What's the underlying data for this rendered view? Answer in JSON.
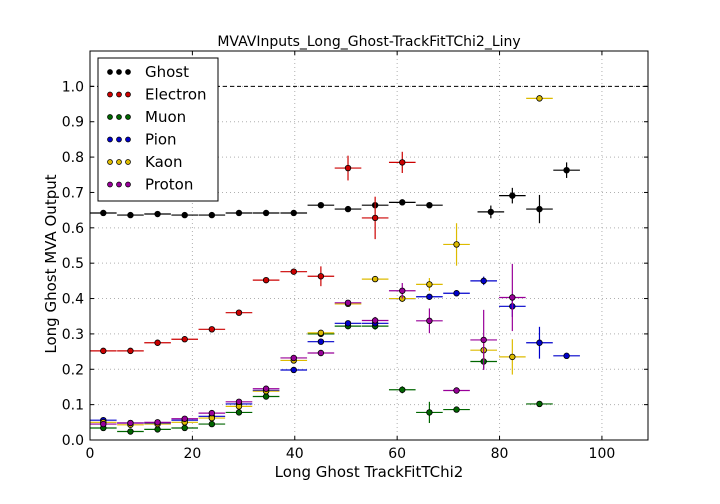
{
  "chart_data": {
    "type": "scatter",
    "title": "MVAVInputs_Long_Ghost-TrackFitTChi2_Liny",
    "xlabel": "Long Ghost TrackFitTChi2",
    "ylabel": "Long Ghost MVA Output",
    "xlim": [
      0,
      109
    ],
    "ylim": [
      0,
      1.1
    ],
    "xticks": [
      0,
      20,
      40,
      60,
      80,
      100
    ],
    "yticks": [
      0.0,
      0.1,
      0.2,
      0.3,
      0.4,
      0.5,
      0.6,
      0.7,
      0.8,
      0.9,
      1.0
    ],
    "grid": true,
    "reference_line_y": 1.0,
    "legend_position": "top-left",
    "series": [
      {
        "name": "Ghost",
        "color": "#000000",
        "points": [
          {
            "x": 2.6,
            "y": 0.642,
            "xerr": 2.6,
            "yerr": 0.004
          },
          {
            "x": 7.9,
            "y": 0.636,
            "xerr": 2.6,
            "yerr": 0.004
          },
          {
            "x": 13.2,
            "y": 0.639,
            "xerr": 2.6,
            "yerr": 0.004
          },
          {
            "x": 18.5,
            "y": 0.636,
            "xerr": 2.6,
            "yerr": 0.004
          },
          {
            "x": 23.8,
            "y": 0.636,
            "xerr": 2.6,
            "yerr": 0.004
          },
          {
            "x": 29.1,
            "y": 0.642,
            "xerr": 2.6,
            "yerr": 0.004
          },
          {
            "x": 34.4,
            "y": 0.642,
            "xerr": 2.6,
            "yerr": 0.004
          },
          {
            "x": 39.8,
            "y": 0.642,
            "xerr": 2.6,
            "yerr": 0.004
          },
          {
            "x": 45.1,
            "y": 0.664,
            "xerr": 2.6,
            "yerr": 0.006
          },
          {
            "x": 50.4,
            "y": 0.653,
            "xerr": 2.6,
            "yerr": 0.006
          },
          {
            "x": 55.7,
            "y": 0.664,
            "xerr": 2.6,
            "yerr": 0.007
          },
          {
            "x": 61.0,
            "y": 0.672,
            "xerr": 2.6,
            "yerr": 0.008
          },
          {
            "x": 66.3,
            "y": 0.664,
            "xerr": 2.6,
            "yerr": 0.008
          },
          {
            "x": 78.3,
            "y": 0.645,
            "xerr": 2.6,
            "yerr": 0.018
          },
          {
            "x": 82.5,
            "y": 0.691,
            "xerr": 2.6,
            "yerr": 0.022
          },
          {
            "x": 87.8,
            "y": 0.653,
            "xerr": 2.6,
            "yerr": 0.04
          },
          {
            "x": 93.1,
            "y": 0.763,
            "xerr": 2.6,
            "yerr": 0.022
          }
        ]
      },
      {
        "name": "Electron",
        "color": "#cc0000",
        "points": [
          {
            "x": 2.6,
            "y": 0.252,
            "xerr": 2.6,
            "yerr": 0.003
          },
          {
            "x": 7.9,
            "y": 0.252,
            "xerr": 2.6,
            "yerr": 0.003
          },
          {
            "x": 13.2,
            "y": 0.275,
            "xerr": 2.6,
            "yerr": 0.003
          },
          {
            "x": 18.5,
            "y": 0.285,
            "xerr": 2.6,
            "yerr": 0.003
          },
          {
            "x": 23.8,
            "y": 0.313,
            "xerr": 2.6,
            "yerr": 0.003
          },
          {
            "x": 29.1,
            "y": 0.36,
            "xerr": 2.6,
            "yerr": 0.004
          },
          {
            "x": 34.4,
            "y": 0.452,
            "xerr": 2.6,
            "yerr": 0.004
          },
          {
            "x": 39.8,
            "y": 0.476,
            "xerr": 2.6,
            "yerr": 0.006
          },
          {
            "x": 45.1,
            "y": 0.463,
            "xerr": 2.6,
            "yerr": 0.028
          },
          {
            "x": 50.4,
            "y": 0.769,
            "xerr": 2.6,
            "yerr": 0.035
          },
          {
            "x": 55.7,
            "y": 0.628,
            "xerr": 2.6,
            "yerr": 0.06
          },
          {
            "x": 61.0,
            "y": 0.785,
            "xerr": 2.6,
            "yerr": 0.03
          }
        ]
      },
      {
        "name": "Muon",
        "color": "#006600",
        "points": [
          {
            "x": 2.6,
            "y": 0.034,
            "xerr": 2.6,
            "yerr": 0.002
          },
          {
            "x": 7.9,
            "y": 0.024,
            "xerr": 2.6,
            "yerr": 0.002
          },
          {
            "x": 13.2,
            "y": 0.03,
            "xerr": 2.6,
            "yerr": 0.002
          },
          {
            "x": 18.5,
            "y": 0.034,
            "xerr": 2.6,
            "yerr": 0.002
          },
          {
            "x": 23.8,
            "y": 0.045,
            "xerr": 2.6,
            "yerr": 0.003
          },
          {
            "x": 29.1,
            "y": 0.078,
            "xerr": 2.6,
            "yerr": 0.004
          },
          {
            "x": 34.4,
            "y": 0.123,
            "xerr": 2.6,
            "yerr": 0.005
          },
          {
            "x": 45.1,
            "y": 0.3,
            "xerr": 2.6,
            "yerr": 0.006
          },
          {
            "x": 50.4,
            "y": 0.322,
            "xerr": 2.6,
            "yerr": 0.008
          },
          {
            "x": 55.7,
            "y": 0.322,
            "xerr": 2.6,
            "yerr": 0.01
          },
          {
            "x": 61.0,
            "y": 0.142,
            "xerr": 2.6,
            "yerr": 0.01
          },
          {
            "x": 66.3,
            "y": 0.078,
            "xerr": 2.6,
            "yerr": 0.03
          },
          {
            "x": 71.6,
            "y": 0.086,
            "xerr": 2.6,
            "yerr": 0.008
          },
          {
            "x": 76.9,
            "y": 0.222,
            "xerr": 2.6,
            "yerr": 0.02
          },
          {
            "x": 87.8,
            "y": 0.102,
            "xerr": 2.6,
            "yerr": 0.004
          }
        ]
      },
      {
        "name": "Pion",
        "color": "#0000cc",
        "points": [
          {
            "x": 2.6,
            "y": 0.056,
            "xerr": 2.6,
            "yerr": 0.002
          },
          {
            "x": 7.9,
            "y": 0.048,
            "xerr": 2.6,
            "yerr": 0.002
          },
          {
            "x": 13.2,
            "y": 0.048,
            "xerr": 2.6,
            "yerr": 0.002
          },
          {
            "x": 18.5,
            "y": 0.056,
            "xerr": 2.6,
            "yerr": 0.002
          },
          {
            "x": 23.8,
            "y": 0.067,
            "xerr": 2.6,
            "yerr": 0.003
          },
          {
            "x": 29.1,
            "y": 0.102,
            "xerr": 2.6,
            "yerr": 0.004
          },
          {
            "x": 34.4,
            "y": 0.14,
            "xerr": 2.6,
            "yerr": 0.004
          },
          {
            "x": 39.8,
            "y": 0.198,
            "xerr": 2.6,
            "yerr": 0.004
          },
          {
            "x": 45.1,
            "y": 0.278,
            "xerr": 2.6,
            "yerr": 0.005
          },
          {
            "x": 50.4,
            "y": 0.33,
            "xerr": 2.6,
            "yerr": 0.006
          },
          {
            "x": 55.7,
            "y": 0.33,
            "xerr": 2.6,
            "yerr": 0.007
          },
          {
            "x": 61.0,
            "y": 0.4,
            "xerr": 2.6,
            "yerr": 0.008
          },
          {
            "x": 66.3,
            "y": 0.405,
            "xerr": 2.6,
            "yerr": 0.008
          },
          {
            "x": 71.6,
            "y": 0.415,
            "xerr": 2.6,
            "yerr": 0.008
          },
          {
            "x": 76.9,
            "y": 0.45,
            "xerr": 2.6,
            "yerr": 0.012
          },
          {
            "x": 82.5,
            "y": 0.378,
            "xerr": 2.6,
            "yerr": 0.03
          },
          {
            "x": 87.8,
            "y": 0.275,
            "xerr": 2.6,
            "yerr": 0.045
          },
          {
            "x": 93.1,
            "y": 0.238,
            "xerr": 2.6,
            "yerr": 0.004
          }
        ]
      },
      {
        "name": "Kaon",
        "color": "#ddbb00",
        "points": [
          {
            "x": 2.6,
            "y": 0.05,
            "xerr": 2.6,
            "yerr": 0.002
          },
          {
            "x": 7.9,
            "y": 0.043,
            "xerr": 2.6,
            "yerr": 0.002
          },
          {
            "x": 13.2,
            "y": 0.045,
            "xerr": 2.6,
            "yerr": 0.002
          },
          {
            "x": 18.5,
            "y": 0.05,
            "xerr": 2.6,
            "yerr": 0.002
          },
          {
            "x": 23.8,
            "y": 0.062,
            "xerr": 2.6,
            "yerr": 0.003
          },
          {
            "x": 29.1,
            "y": 0.095,
            "xerr": 2.6,
            "yerr": 0.004
          },
          {
            "x": 34.4,
            "y": 0.138,
            "xerr": 2.6,
            "yerr": 0.004
          },
          {
            "x": 39.8,
            "y": 0.225,
            "xerr": 2.6,
            "yerr": 0.005
          },
          {
            "x": 45.1,
            "y": 0.303,
            "xerr": 2.6,
            "yerr": 0.006
          },
          {
            "x": 50.4,
            "y": 0.385,
            "xerr": 2.6,
            "yerr": 0.007
          },
          {
            "x": 55.7,
            "y": 0.455,
            "xerr": 2.6,
            "yerr": 0.008
          },
          {
            "x": 61.0,
            "y": 0.4,
            "xerr": 2.6,
            "yerr": 0.01
          },
          {
            "x": 66.3,
            "y": 0.44,
            "xerr": 2.6,
            "yerr": 0.018
          },
          {
            "x": 71.6,
            "y": 0.553,
            "xerr": 2.6,
            "yerr": 0.06
          },
          {
            "x": 76.9,
            "y": 0.254,
            "xerr": 2.6,
            "yerr": 0.03
          },
          {
            "x": 82.5,
            "y": 0.235,
            "xerr": 2.6,
            "yerr": 0.05
          },
          {
            "x": 87.8,
            "y": 0.966,
            "xerr": 2.6,
            "yerr": 0.004
          }
        ]
      },
      {
        "name": "Proton",
        "color": "#990099",
        "points": [
          {
            "x": 2.6,
            "y": 0.045,
            "xerr": 2.6,
            "yerr": 0.002
          },
          {
            "x": 7.9,
            "y": 0.048,
            "xerr": 2.6,
            "yerr": 0.002
          },
          {
            "x": 13.2,
            "y": 0.05,
            "xerr": 2.6,
            "yerr": 0.002
          },
          {
            "x": 18.5,
            "y": 0.06,
            "xerr": 2.6,
            "yerr": 0.002
          },
          {
            "x": 23.8,
            "y": 0.076,
            "xerr": 2.6,
            "yerr": 0.003
          },
          {
            "x": 29.1,
            "y": 0.108,
            "xerr": 2.6,
            "yerr": 0.004
          },
          {
            "x": 34.4,
            "y": 0.145,
            "xerr": 2.6,
            "yerr": 0.004
          },
          {
            "x": 39.8,
            "y": 0.232,
            "xerr": 2.6,
            "yerr": 0.005
          },
          {
            "x": 45.1,
            "y": 0.246,
            "xerr": 2.6,
            "yerr": 0.006
          },
          {
            "x": 50.4,
            "y": 0.388,
            "xerr": 2.6,
            "yerr": 0.007
          },
          {
            "x": 55.7,
            "y": 0.338,
            "xerr": 2.6,
            "yerr": 0.01
          },
          {
            "x": 61.0,
            "y": 0.422,
            "xerr": 2.6,
            "yerr": 0.022
          },
          {
            "x": 66.3,
            "y": 0.337,
            "xerr": 2.6,
            "yerr": 0.035
          },
          {
            "x": 71.6,
            "y": 0.14,
            "xerr": 2.6,
            "yerr": 0.004
          },
          {
            "x": 76.9,
            "y": 0.283,
            "xerr": 2.6,
            "yerr": 0.085
          },
          {
            "x": 82.5,
            "y": 0.403,
            "xerr": 2.6,
            "yerr": 0.095
          }
        ]
      }
    ]
  }
}
